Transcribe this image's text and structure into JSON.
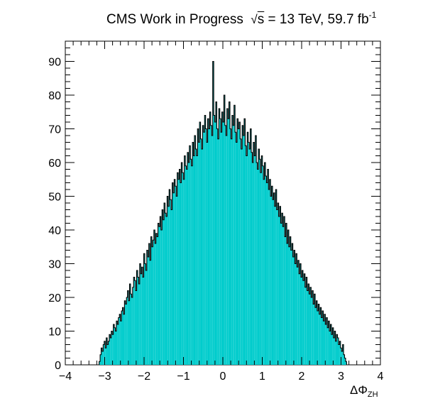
{
  "chart_data": {
    "type": "bar",
    "title": "CMS Work in Progress",
    "energy_label": "s",
    "energy_value": " = 13 TeV, 59.7 fb",
    "lumi_exponent": "-1",
    "xlabel": "ΔΦ",
    "xlabel_subscript": "ZH",
    "ylabel": "",
    "xlim": [
      -4,
      4
    ],
    "ylim": [
      0,
      96
    ],
    "x_ticks": [
      "−4",
      "−3",
      "−2",
      "−1",
      "0",
      "1",
      "2",
      "3",
      "4"
    ],
    "y_ticks": [
      "0",
      "10",
      "20",
      "30",
      "40",
      "50",
      "60",
      "70",
      "80",
      "90"
    ],
    "bin_range": [
      -3.1416,
      3.1416
    ],
    "fill_color": "#00cccc",
    "line_color": "#000000",
    "series": [
      {
        "values": [
          1,
          3,
          5,
          4,
          6,
          7,
          5,
          8,
          6,
          7,
          9,
          8,
          10,
          9,
          12,
          11,
          10,
          13,
          12,
          14,
          15,
          13,
          16,
          17,
          15,
          19,
          18,
          20,
          22,
          19,
          24,
          21,
          20,
          23,
          26,
          25,
          22,
          28,
          26,
          24,
          30,
          27,
          29,
          26,
          33,
          30,
          28,
          34,
          32,
          36,
          31,
          38,
          35,
          37,
          40,
          36,
          39,
          38,
          42,
          41,
          44,
          40,
          46,
          43,
          48,
          45,
          44,
          50,
          47,
          52,
          49,
          46,
          54,
          51,
          55,
          53,
          50,
          57,
          55,
          58,
          54,
          60,
          57,
          55,
          62,
          59,
          58,
          63,
          60,
          65,
          61,
          59,
          66,
          62,
          68,
          64,
          62,
          70,
          66,
          72,
          67,
          64,
          71,
          69,
          74,
          70,
          66,
          73,
          70,
          75,
          71,
          68,
          90,
          74,
          72,
          78,
          70,
          67,
          76,
          73,
          69,
          75,
          72,
          80,
          71,
          68,
          76,
          73,
          78,
          70,
          67,
          74,
          71,
          77,
          69,
          66,
          73,
          70,
          72,
          67,
          64,
          71,
          68,
          73,
          65,
          62,
          69,
          66,
          64,
          70,
          63,
          60,
          66,
          62,
          68,
          60,
          58,
          64,
          61,
          57,
          62,
          59,
          55,
          60,
          56,
          54,
          58,
          52,
          55,
          50,
          53,
          49,
          51,
          47,
          52,
          46,
          48,
          44,
          47,
          42,
          45,
          41,
          44,
          38,
          42,
          36,
          40,
          35,
          38,
          34,
          36,
          32,
          34,
          30,
          33,
          29,
          31,
          27,
          30,
          26,
          28,
          25,
          27,
          23,
          26,
          22,
          24,
          21,
          23,
          20,
          22,
          18,
          21,
          17,
          19,
          16,
          18,
          15,
          17,
          14,
          16,
          13,
          15,
          12,
          14,
          11,
          13,
          10,
          12,
          9,
          11,
          8,
          10,
          7,
          9,
          8,
          6,
          7,
          5,
          4,
          6,
          3,
          2,
          1
        ]
      }
    ]
  }
}
